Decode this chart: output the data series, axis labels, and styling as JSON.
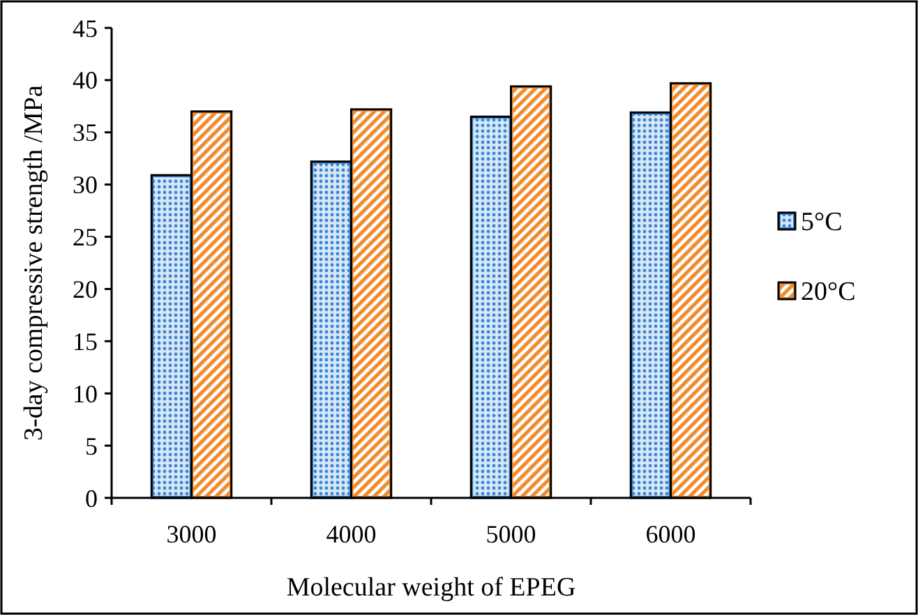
{
  "chart_data": {
    "type": "bar",
    "xlabel": "Molecular weight of EPEG",
    "ylabel": "3-day compressive strength /MPa",
    "categories": [
      "3000",
      "4000",
      "5000",
      "6000"
    ],
    "series": [
      {
        "name": "5°C",
        "color": "#3a86d4",
        "values": [
          30.9,
          32.2,
          36.5,
          36.9
        ]
      },
      {
        "name": "20°C",
        "color": "#f08c30",
        "values": [
          37.0,
          37.2,
          39.4,
          39.7
        ]
      }
    ],
    "ylim": [
      0,
      45
    ],
    "yticks": [
      0,
      5,
      10,
      15,
      20,
      25,
      30,
      35,
      40,
      45
    ],
    "grid": false,
    "legend": "right"
  }
}
